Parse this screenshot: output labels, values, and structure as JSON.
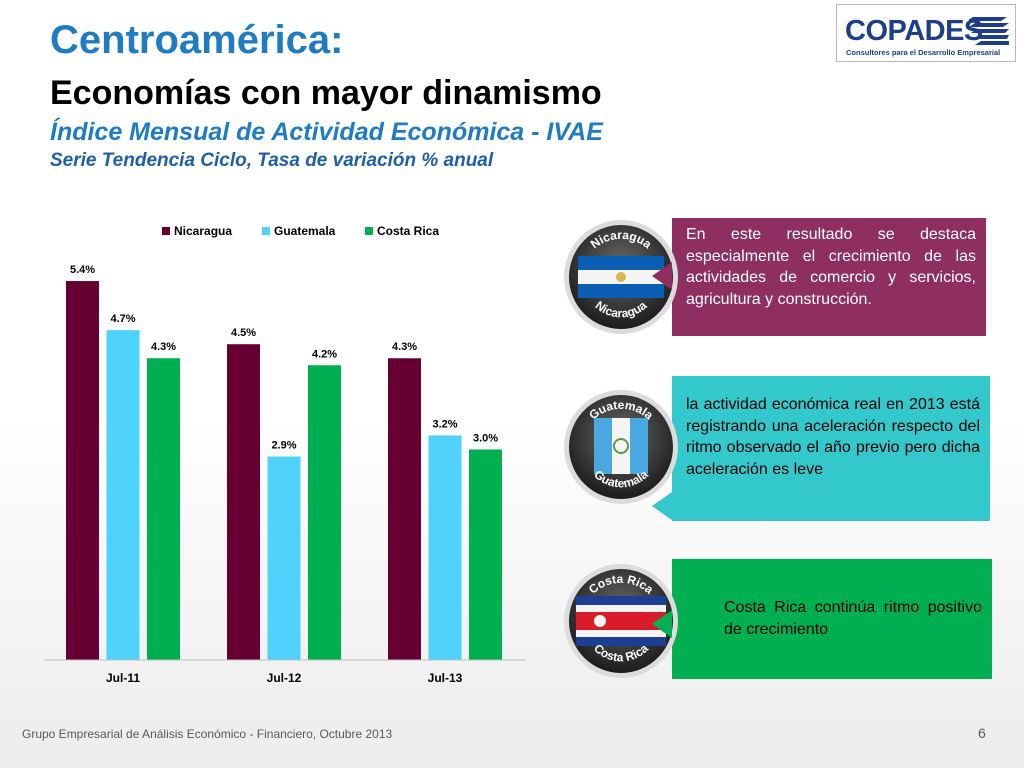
{
  "header": {
    "title": "Centroamérica:",
    "subtitle": "Economías con mayor  dinamismo",
    "index_title": "Índice Mensual de Actividad Económica - IVAE",
    "series_note": "Serie Tendencia Ciclo, Tasa de variación % anual"
  },
  "logo": {
    "name": "COPADES",
    "tagline": "Consultores para el Desarrollo Empresarial"
  },
  "chart_data": {
    "type": "bar",
    "categories": [
      "Jul-11",
      "Jul-12",
      "Jul-13"
    ],
    "series": [
      {
        "name": "Nicaragua",
        "values": [
          5.4,
          4.5,
          4.3
        ],
        "labels": [
          "5.4%",
          "4.5%",
          "4.3%"
        ],
        "color": "#660033"
      },
      {
        "name": "Guatemala",
        "values": [
          4.7,
          2.9,
          3.2
        ],
        "labels": [
          "4.7%",
          "2.9%",
          "3.2%"
        ],
        "color": "#4fd2fb"
      },
      {
        "name": "Costa Rica",
        "values": [
          4.3,
          4.2,
          3.0
        ],
        "labels": [
          "4.3%",
          "4.2%",
          "3.0%"
        ],
        "color": "#00b050"
      }
    ],
    "legend_position": "top",
    "grid": false,
    "ylim": [
      0,
      5.7
    ]
  },
  "callouts": [
    {
      "country": "Nicaragua",
      "text": "En este resultado se destaca especialmente el crecimiento de las actividades de comercio y servicios, agricultura y construcción.",
      "color": "#8f2e61"
    },
    {
      "country": "Guatemala",
      "text": "la actividad económica real en 2013 está registrando una aceleración respecto del ritmo observado el año previo pero  dicha aceleración es leve",
      "color": "#33c8cc"
    },
    {
      "country": "Costa Rica",
      "text": "Costa Rica continúa ritmo positivo de crecimiento",
      "color": "#00b050"
    }
  ],
  "footer": {
    "text": "Grupo Empresarial de Análisis Económico - Financiero, Octubre 2013",
    "page": "6"
  }
}
